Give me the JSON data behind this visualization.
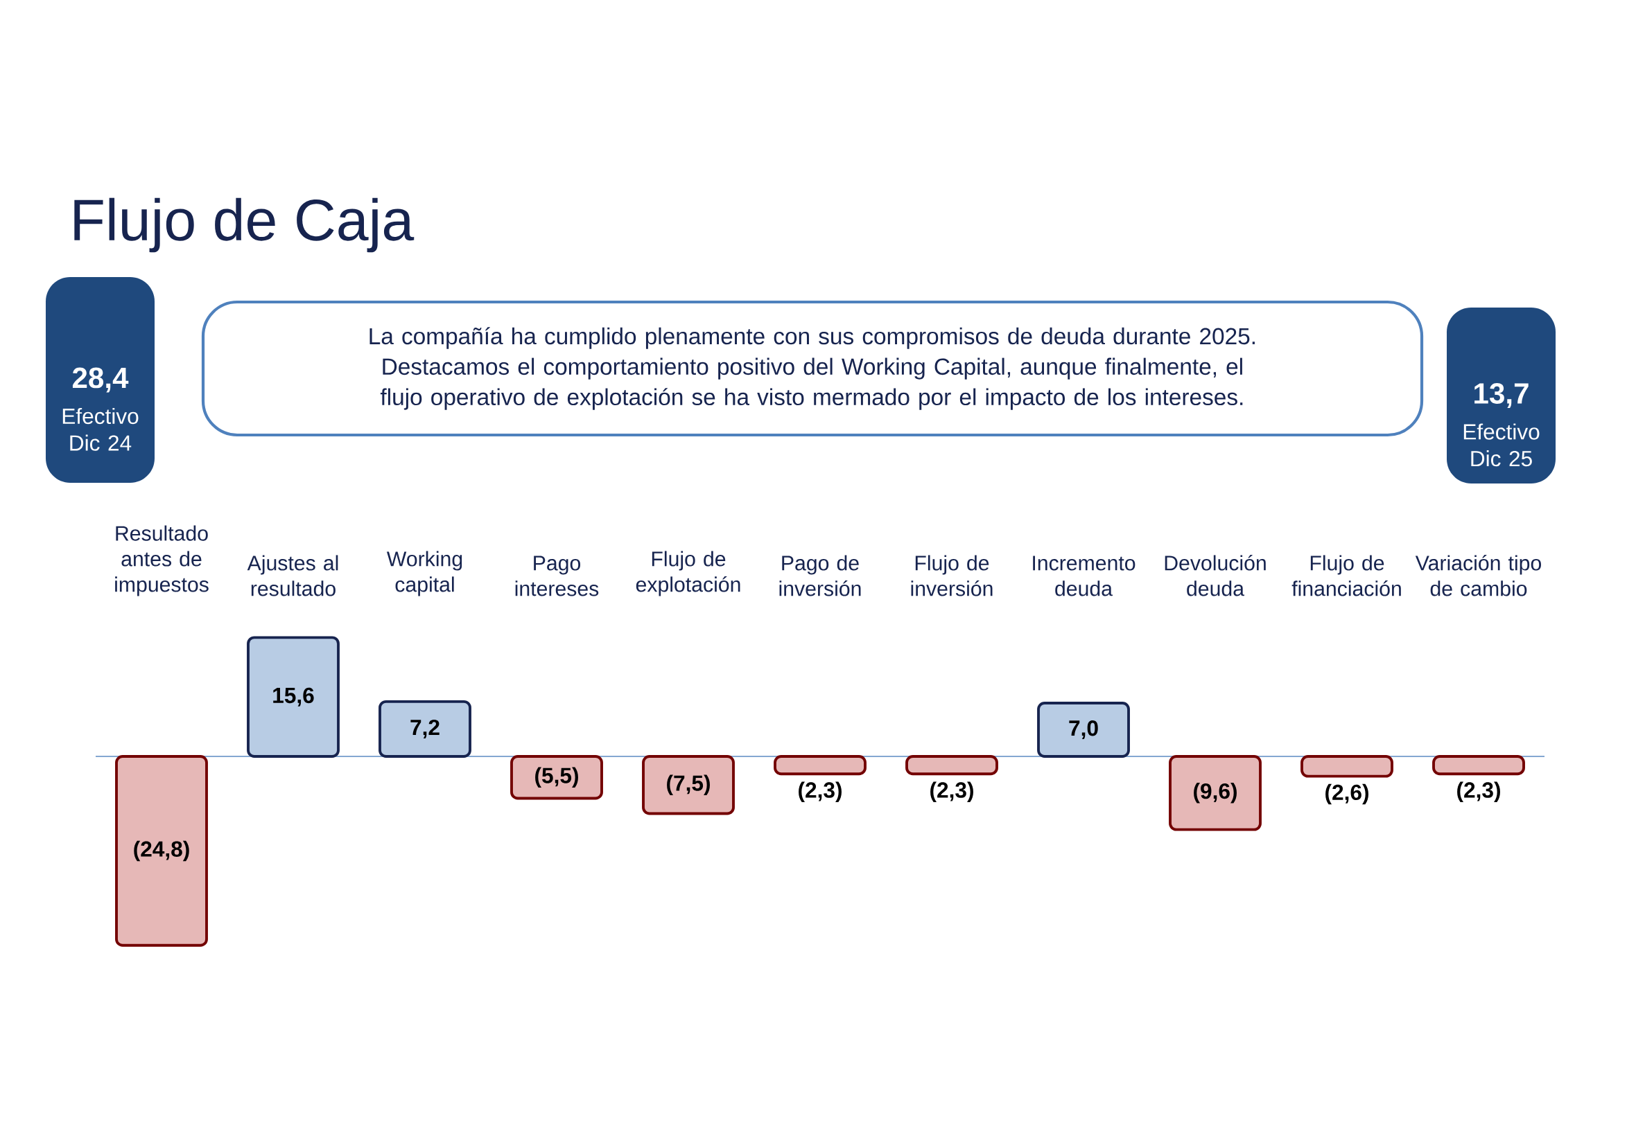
{
  "chart_data": {
    "type": "bar",
    "title": "Flujo de Caja",
    "categories": [
      "Resultado antes de impuestos",
      "Ajustes al resultado",
      "Working capital",
      "Pago intereses",
      "Flujo de explotación",
      "Pago de inversión",
      "Flujo de inversión",
      "Incremento deuda",
      "Devolución deuda",
      "Flujo de financiación",
      "Variación tipo de cambio"
    ],
    "values": [
      -24.8,
      15.6,
      7.2,
      -5.5,
      -7.5,
      -2.3,
      -2.3,
      7.0,
      -9.6,
      -2.6,
      -2.3
    ],
    "colors": [
      "#e6b8b7",
      "#b8cce4",
      "#b8cce4",
      "#e6b8b7",
      "#e6b8b7",
      "#e6b8b7",
      "#e6b8b7",
      "#b8cce4",
      "#e6b8b7",
      "#e6b8b7",
      "#e6b8b7"
    ],
    "ref_lines": [
      {
        "axis": "y",
        "value": 0,
        "color": "#84a7d1"
      }
    ],
    "value_labels": [
      "(24,8)",
      "15,6",
      "7,2",
      "(5,5)",
      "(7,5)",
      "(2,3)",
      "(2,3)",
      "7,0",
      "(9,6)",
      "(2,6)",
      "(2,3)"
    ],
    "annotations": [
      "La compañía ha cumplido plenamente con sus compromisos de deuda durante 2025. Destacamos el comportamiento positivo del Working Capital, aunque finalmente, el flujo operativo de explotación se ha visto mermado por el impacto de los intereses.",
      "28,4",
      "Efectivo Dic 24",
      "13,7",
      "Efectivo Dic 25"
    ]
  }
}
